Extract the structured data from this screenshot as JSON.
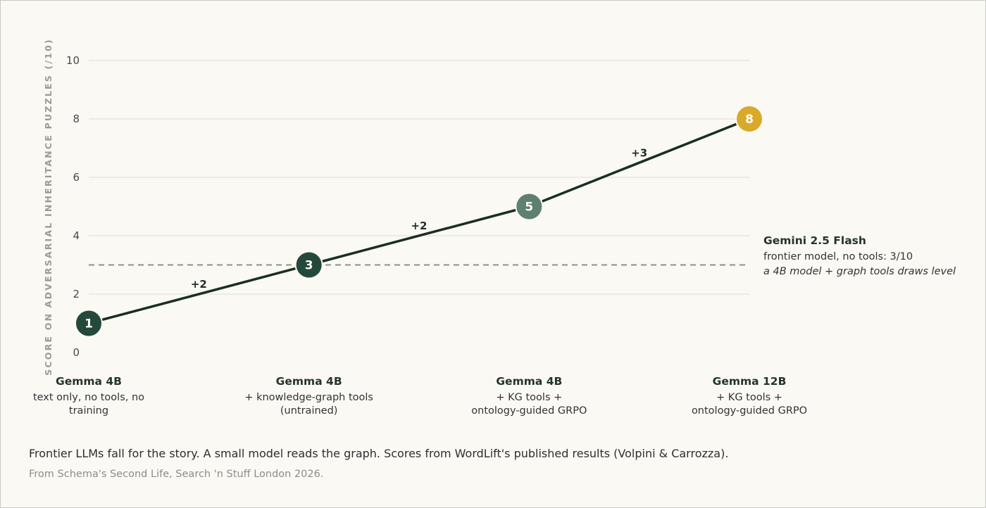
{
  "chart_data": {
    "type": "line",
    "ylabel": "SCORE ON ADVERSARIAL INHERITANCE PUZZLES (/10)",
    "ylim": [
      0,
      10
    ],
    "yticks": [
      "0",
      "2",
      "4",
      "6",
      "8",
      "10"
    ],
    "grid": true,
    "categories": [
      {
        "title": "Gemma 4B",
        "sub": [
          "text only, no tools, no",
          "training"
        ]
      },
      {
        "title": "Gemma 4B",
        "sub": [
          "+ knowledge-graph tools",
          "(untrained)"
        ]
      },
      {
        "title": "Gemma 4B",
        "sub": [
          "+ KG tools +",
          "ontology-guided GRPO"
        ]
      },
      {
        "title": "Gemma 12B",
        "sub": [
          "+ KG tools +",
          "ontology-guided GRPO"
        ]
      }
    ],
    "series": [
      {
        "values": [
          1,
          3,
          5,
          8
        ],
        "point_labels": [
          "1",
          "3",
          "5",
          "8"
        ],
        "point_colors": [
          "#24493a",
          "#24493a",
          "#5e8070",
          "#d9a92a"
        ],
        "line_color": "#1a2e22"
      }
    ],
    "deltas": [
      "+2",
      "+2",
      "+3"
    ],
    "reference_line": {
      "value": 3,
      "style": "dashed",
      "color": "#8f8f8a",
      "title": "Gemini 2.5 Flash",
      "subtitle": "frontier model, no tools: 3/10",
      "note": "a 4B model + graph tools draws level"
    }
  },
  "caption": "Frontier LLMs fall for the story. A small model reads the graph. Scores from WordLift's published results (Volpini & Carrozza).",
  "source": "From Schema's Second Life, Search 'n Stuff London 2026."
}
